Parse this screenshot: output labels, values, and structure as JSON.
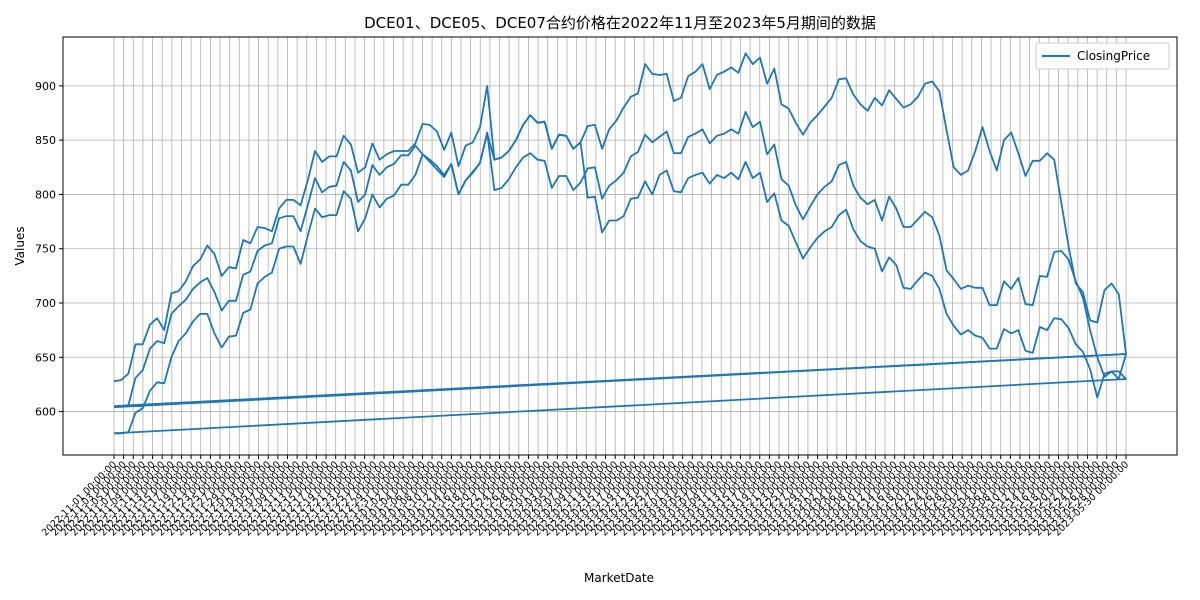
{
  "chart_data": {
    "type": "line",
    "title": "DCE01、DCE05、DCE07合约价格在2022年11月至2023年5月期间的数据",
    "xlabel": "MarketDate",
    "ylabel": "Values",
    "ylim": [
      560,
      945
    ],
    "yticks": [
      600,
      650,
      700,
      750,
      800,
      850,
      900
    ],
    "grid": true,
    "legend": {
      "position": "top-right",
      "entries": [
        "ClosingPrice"
      ]
    },
    "x_start": "2022-11-01",
    "x_end": "2023-05-30",
    "xtick_format": "YYYY-MM-DD 00:00:00",
    "series": [
      {
        "name": "ClosingPrice",
        "color": "#1f77b4",
        "values": [
          628,
          629,
          635,
          662,
          662,
          680,
          686,
          675,
          709,
          711,
          720,
          734,
          740,
          753,
          745,
          725,
          733,
          732,
          758,
          755,
          770,
          769,
          766,
          787,
          795,
          795,
          790,
          813,
          840,
          830,
          835,
          835,
          854,
          846,
          820,
          825,
          847,
          832,
          837,
          840,
          840,
          840,
          847,
          865,
          864,
          858,
          841,
          857,
          826,
          845,
          848,
          862,
          900,
          832,
          834,
          840,
          850,
          864,
          873,
          866,
          867,
          842,
          855,
          854,
          842,
          848,
          863,
          864,
          842,
          860,
          868,
          880,
          890,
          893,
          920,
          911,
          910,
          911,
          886,
          889,
          909,
          913,
          920,
          897,
          910,
          913,
          917,
          912,
          930,
          920,
          926,
          902,
          916,
          883,
          879,
          866,
          855,
          866,
          873,
          881,
          889,
          906,
          907,
          892,
          883,
          877,
          889,
          882,
          896,
          888,
          880,
          883,
          890,
          902,
          904,
          895,
          859,
          825,
          818,
          822,
          840,
          862,
          840,
          822,
          850,
          857,
          838,
          817,
          831,
          831,
          838,
          832,
          792,
          752,
          718,
          710,
          684,
          682,
          712,
          718,
          708,
          653
        ],
        "tail_x": "2022-11-01",
        "tail_value": 605
      },
      {
        "name": "ClosingPrice",
        "color": "#1f77b4",
        "values": [
          604,
          605,
          606,
          631,
          638,
          658,
          665,
          663,
          690,
          697,
          703,
          713,
          719,
          723,
          710,
          693,
          702,
          702,
          726,
          729,
          748,
          753,
          755,
          778,
          780,
          780,
          766,
          790,
          815,
          802,
          807,
          808,
          830,
          822,
          793,
          800,
          827,
          818,
          825,
          828,
          836,
          836,
          845,
          837,
          832,
          826,
          818,
          828,
          800,
          813,
          821,
          829,
          857,
          804,
          806,
          814,
          825,
          834,
          838,
          832,
          831,
          806,
          817,
          817,
          804,
          811,
          824,
          825,
          796,
          808,
          813,
          820,
          835,
          839,
          855,
          848,
          853,
          858,
          838,
          838,
          853,
          856,
          860,
          847,
          854,
          856,
          860,
          856,
          876,
          862,
          867,
          837,
          846,
          814,
          808,
          790,
          777,
          789,
          800,
          807,
          812,
          827,
          830,
          808,
          797,
          791,
          795,
          776,
          798,
          787,
          770,
          770,
          777,
          784,
          779,
          762,
          730,
          722,
          713,
          716,
          714,
          714,
          698,
          698,
          720,
          713,
          723,
          699,
          698,
          725,
          724,
          747,
          748,
          740,
          720,
          705,
          675,
          650,
          632,
          637,
          637,
          630
        ],
        "tail_x": "2022-11-01",
        "tail_value": 580
      },
      {
        "name": "ClosingPrice",
        "color": "#1f77b4",
        "values": [
          580,
          580,
          581,
          599,
          603,
          619,
          627,
          626,
          650,
          665,
          672,
          683,
          690,
          690,
          672,
          659,
          669,
          670,
          691,
          694,
          718,
          724,
          728,
          750,
          752,
          752,
          736,
          762,
          787,
          779,
          781,
          781,
          803,
          796,
          766,
          778,
          800,
          788,
          796,
          799,
          809,
          809,
          818,
          837,
          830,
          823,
          816,
          828,
          800,
          813,
          820,
          829,
          856,
          832,
          834,
          840,
          850,
          864,
          873,
          866,
          867,
          842,
          855,
          854,
          842,
          848,
          797,
          798,
          765,
          776,
          776,
          780,
          796,
          797,
          812,
          800,
          818,
          822,
          803,
          802,
          815,
          818,
          820,
          810,
          818,
          815,
          820,
          814,
          830,
          815,
          820,
          793,
          801,
          776,
          771,
          756,
          741,
          751,
          760,
          766,
          770,
          781,
          786,
          768,
          757,
          752,
          750,
          729,
          742,
          735,
          714,
          713,
          721,
          728,
          725,
          713,
          690,
          679,
          671,
          675,
          670,
          668,
          658,
          658,
          676,
          672,
          675,
          656,
          654,
          678,
          675,
          686,
          685,
          677,
          662,
          655,
          639,
          613,
          635,
          637,
          630,
          653
        ],
        "tail_x": "2022-11-01",
        "tail_value": 604
      }
    ]
  }
}
